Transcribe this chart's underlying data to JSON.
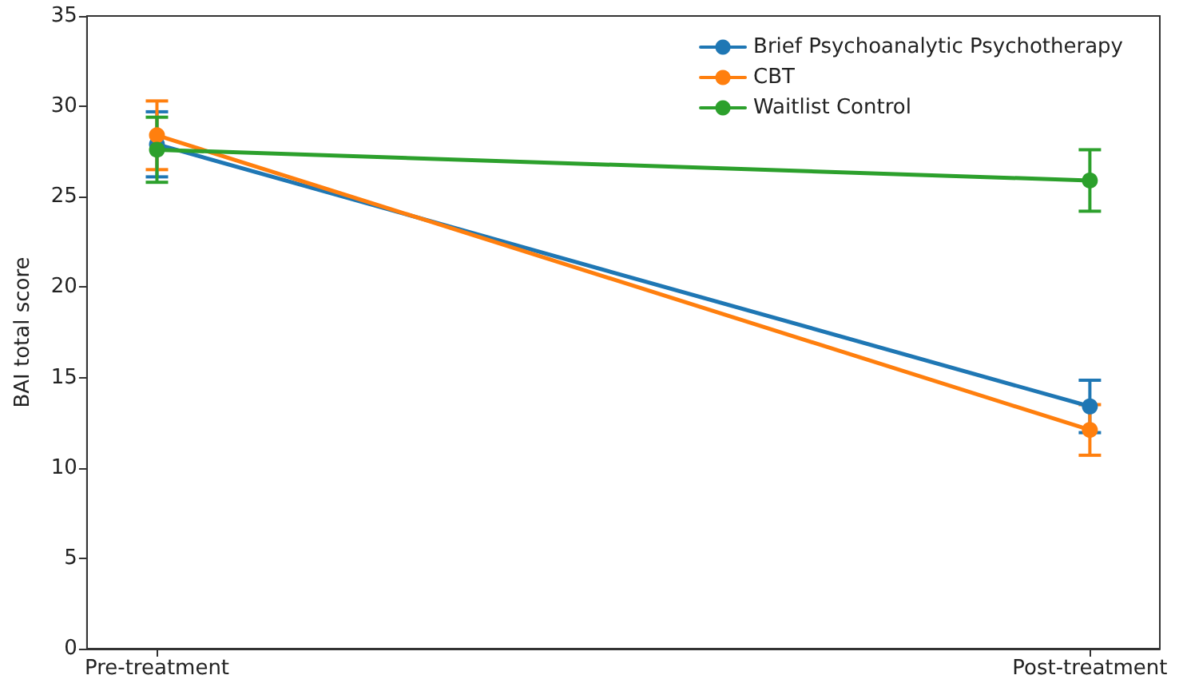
{
  "chart_data": {
    "type": "line",
    "ylabel": "BAI total score",
    "categories": [
      "Pre-treatment",
      "Post-treatment"
    ],
    "series": [
      {
        "name": "Brief Psychoanalytic Psychotherapy",
        "color": "#1f77b4",
        "values": [
          27.9,
          13.4
        ],
        "errors": [
          1.8,
          1.45
        ]
      },
      {
        "name": "CBT",
        "color": "#ff7f0e",
        "values": [
          28.4,
          12.1
        ],
        "errors": [
          1.9,
          1.4
        ]
      },
      {
        "name": "Waitlist Control",
        "color": "#2ca02c",
        "values": [
          27.6,
          25.9
        ],
        "errors": [
          1.8,
          1.7
        ]
      }
    ],
    "ylim": [
      0,
      35
    ],
    "yticks": [
      0,
      5,
      10,
      15,
      20,
      25,
      30,
      35
    ],
    "legend": "top right",
    "marker": "circle",
    "line_style": "solid",
    "grid": false
  }
}
